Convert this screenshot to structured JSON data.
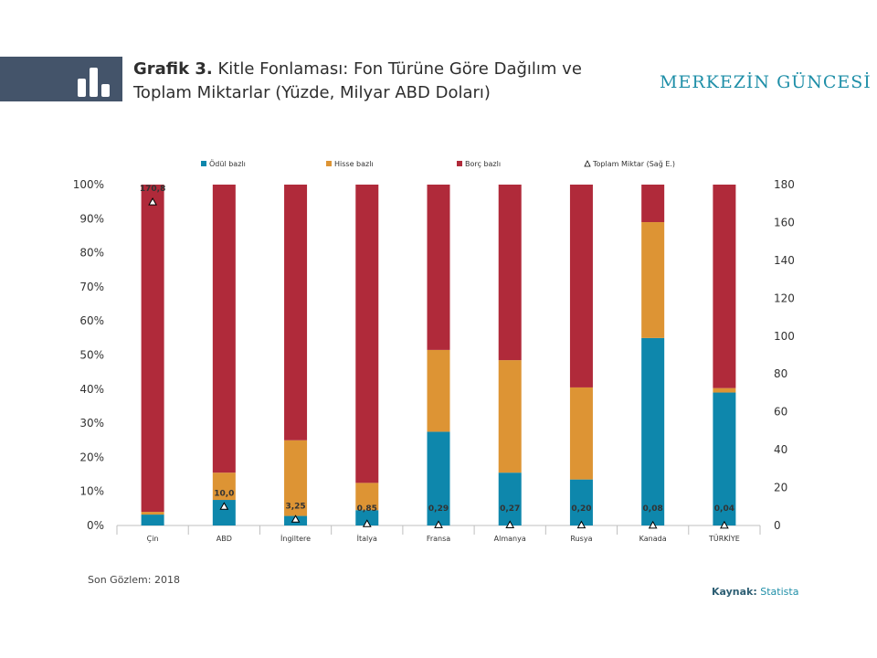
{
  "header": {
    "title_lead": "Grafik 3.",
    "title_text": "Kitle Fonlaması: Fon Türüne Göre Dağılım ve Toplam Miktarlar (Yüzde, Milyar ABD Doları)",
    "brand": "MERKEZİN GÜNCESİ",
    "icon": "bar-chart-icon"
  },
  "footer": {
    "note": "Son Gözlem: 2018",
    "source_label": "Kaynak:",
    "source_value": "Statista"
  },
  "colors": {
    "odul": "#0e87ac",
    "hisse": "#dd9434",
    "borc": "#b02a3a",
    "header_block": "#44546a",
    "brand": "#1f8fa8"
  },
  "chart_data": {
    "type": "bar",
    "stacked": true,
    "categories": [
      "Çin",
      "ABD",
      "İngiltere",
      "İtalya",
      "Fransa",
      "Almanya",
      "Rusya",
      "Kanada",
      "TÜRKİYE"
    ],
    "series": [
      {
        "name": "Ödül bazlı",
        "values": [
          3.2,
          7.5,
          2.8,
          4.5,
          27.5,
          15.5,
          13.5,
          55.0,
          39.0
        ]
      },
      {
        "name": "Hisse bazlı",
        "values": [
          0.8,
          8.0,
          22.2,
          8.0,
          24.0,
          33.0,
          27.0,
          34.0,
          1.3
        ]
      },
      {
        "name": "Borç bazlı",
        "values": [
          96.0,
          84.5,
          75.0,
          87.5,
          48.5,
          51.5,
          59.5,
          11.0,
          59.7
        ]
      }
    ],
    "line_series": {
      "name": "Toplam Miktar (Sağ E.)",
      "values": [
        170.8,
        10.0,
        3.25,
        0.85,
        0.29,
        0.27,
        0.2,
        0.08,
        0.04
      ],
      "labels": [
        "170,8",
        "10,0",
        "3,25",
        "0,85",
        "0,29",
        "0,27",
        "0,20",
        "0,08",
        "0,04"
      ],
      "axis": "right"
    },
    "y_left": {
      "ylim": [
        0,
        100
      ],
      "ticks": [
        "0%",
        "10%",
        "20%",
        "30%",
        "40%",
        "50%",
        "60%",
        "70%",
        "80%",
        "90%",
        "100%"
      ]
    },
    "y_right": {
      "ylim": [
        0,
        180
      ],
      "ticks": [
        "0",
        "20",
        "40",
        "60",
        "80",
        "100",
        "120",
        "140",
        "160",
        "180"
      ]
    },
    "legend_position": "top",
    "grid": false,
    "title": "",
    "xlabel": "",
    "ylabel": ""
  }
}
